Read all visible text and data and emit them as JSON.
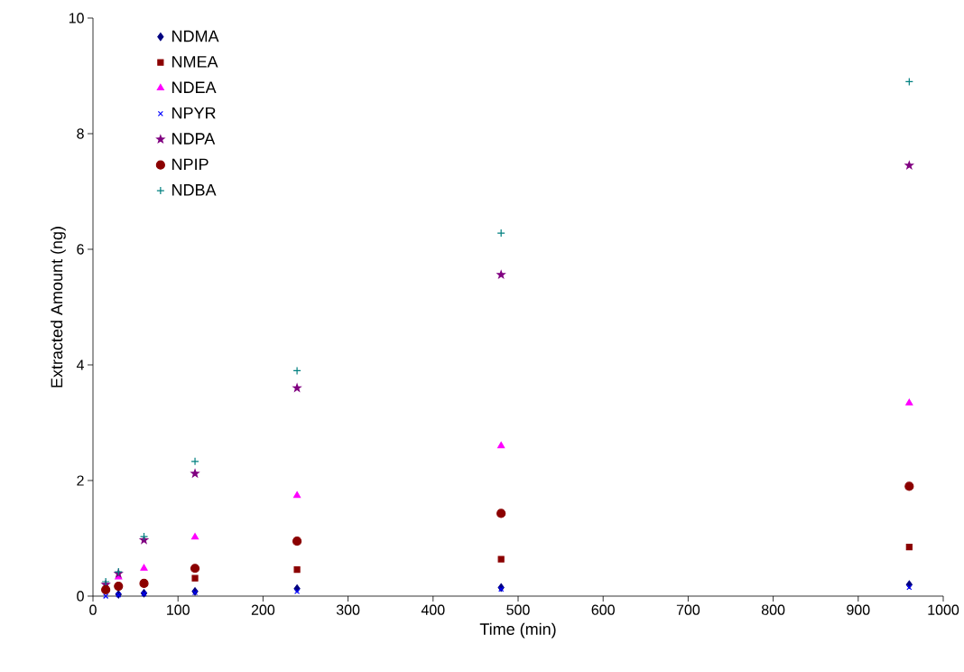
{
  "chart_data": {
    "type": "scatter",
    "xlabel": "Time (min)",
    "ylabel": "Extracted Amount (ng)",
    "x": [
      15,
      30,
      60,
      120,
      240,
      480,
      960
    ],
    "series": [
      {
        "name": "NDMA",
        "color": "#000080",
        "marker": "diamond",
        "values": [
          null,
          0.03,
          0.05,
          0.08,
          0.13,
          0.15,
          0.2
        ]
      },
      {
        "name": "NMEA",
        "color": "#8b0000",
        "marker": "square",
        "values": [
          null,
          null,
          null,
          0.31,
          0.46,
          0.64,
          0.85
        ]
      },
      {
        "name": "NDEA",
        "color": "#ff00ff",
        "marker": "triangle",
        "values": [
          null,
          0.33,
          0.48,
          1.02,
          1.74,
          2.6,
          3.34
        ]
      },
      {
        "name": "NPYR",
        "color": "#0000ff",
        "marker": "cross",
        "values": [
          0.0,
          0.02,
          0.04,
          0.06,
          0.08,
          0.12,
          0.15
        ]
      },
      {
        "name": "NDPA",
        "color": "#800080",
        "marker": "star",
        "values": [
          0.2,
          0.39,
          0.97,
          2.12,
          3.6,
          5.56,
          7.45
        ]
      },
      {
        "name": "NPIP",
        "color": "#8b0000",
        "marker": "circle",
        "values": [
          0.11,
          0.17,
          0.22,
          0.48,
          0.95,
          1.43,
          1.9
        ]
      },
      {
        "name": "NDBA",
        "color": "#008080",
        "marker": "plus",
        "values": [
          0.25,
          0.42,
          1.03,
          2.33,
          3.9,
          6.28,
          8.9
        ]
      }
    ],
    "xlim": [
      0,
      1000
    ],
    "xticks": [
      0,
      100,
      200,
      300,
      400,
      500,
      600,
      700,
      800,
      900,
      1000
    ],
    "ylim": [
      0,
      10
    ],
    "yticks": [
      0,
      2,
      4,
      6,
      8,
      10
    ],
    "grid": false,
    "legend": "top left"
  }
}
